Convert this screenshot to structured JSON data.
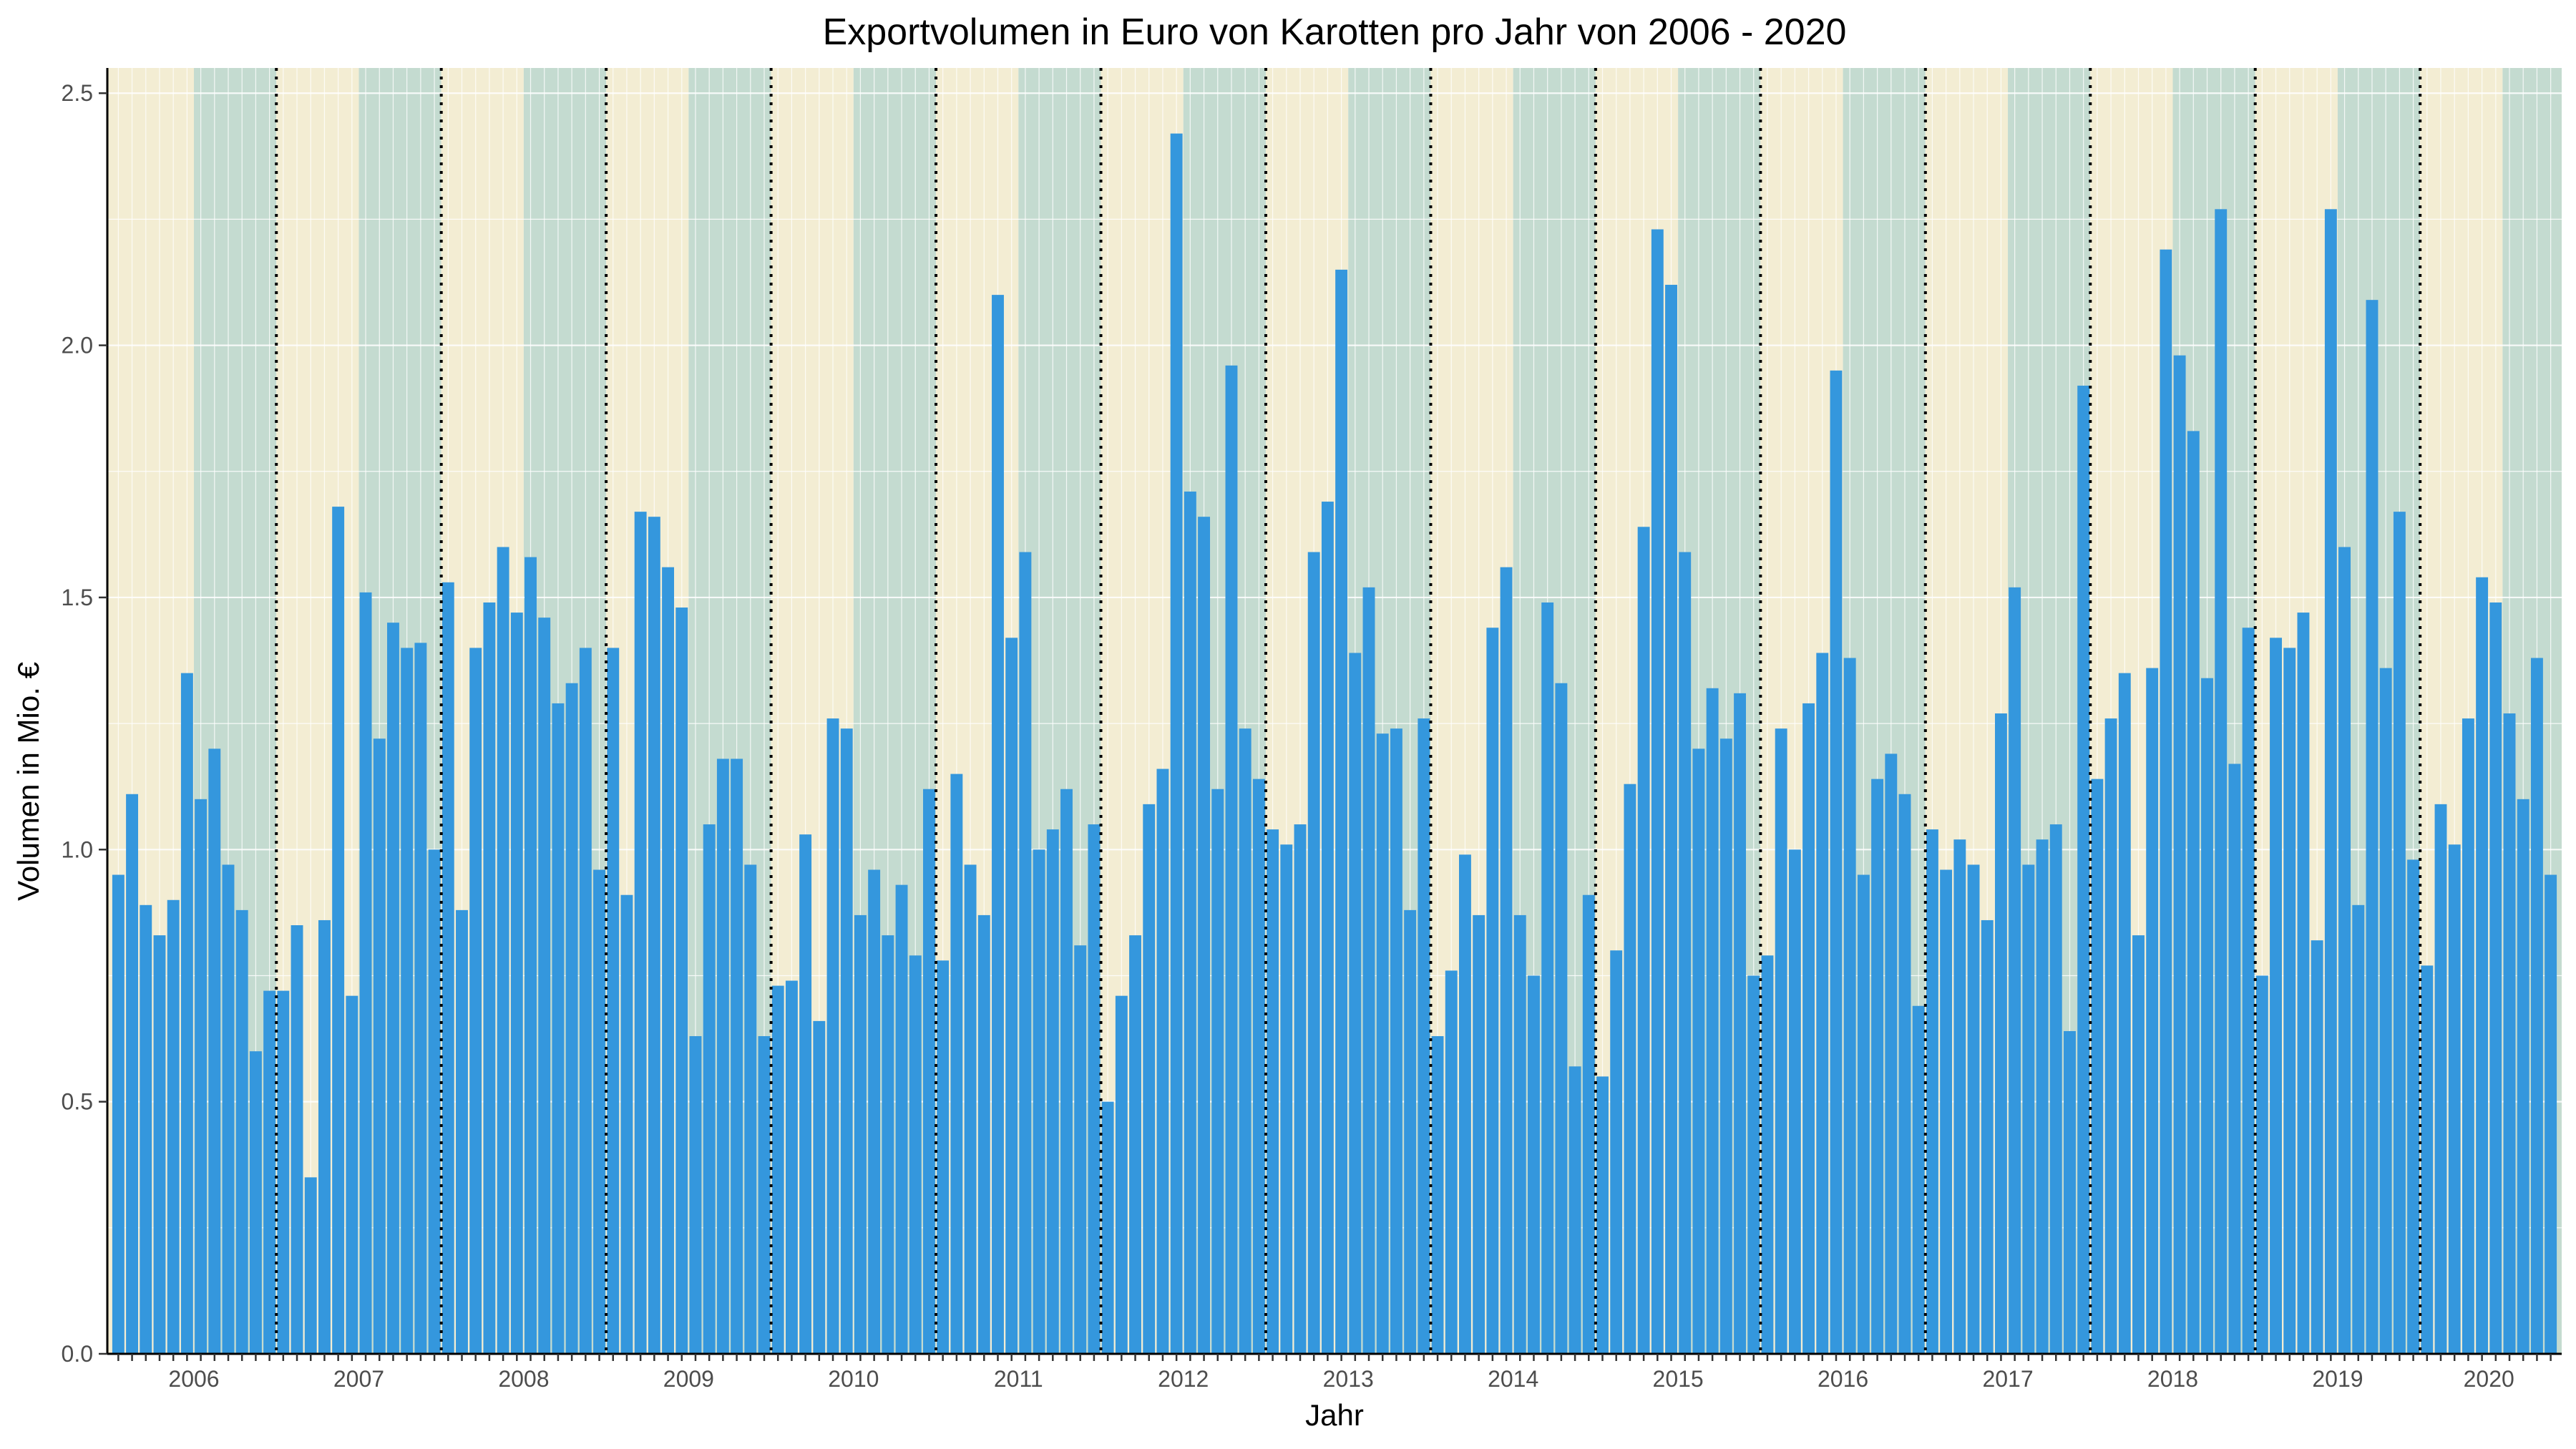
{
  "chart_data": {
    "type": "bar",
    "title": "Exportvolumen in Euro von Karotten pro Jahr von 2006 - 2020",
    "xlabel": "Jahr",
    "ylabel": "Volumen in Mio. €",
    "ylim": [
      0,
      2.55
    ],
    "y_ticks": [
      "0.0",
      "0.5",
      "1.0",
      "1.5",
      "2.0",
      "2.5"
    ],
    "x_tick_labels": [
      "2006",
      "2007",
      "2008",
      "2009",
      "2010",
      "2011",
      "2012",
      "2013",
      "2014",
      "2015",
      "2016",
      "2017",
      "2018",
      "2019",
      "2020"
    ],
    "bar_color": "#3497dd",
    "background_bands": {
      "first_half_color": "#f3edd3",
      "second_half_color": "#c4dbd0"
    },
    "year_separator": "dotted vertical line between years",
    "grid": true,
    "legend": "none",
    "series": [
      {
        "year": "2006",
        "values": [
          0.95,
          1.11,
          0.89,
          0.83,
          0.9,
          1.35,
          1.1,
          1.2,
          0.97,
          0.88,
          0.6,
          0.72
        ]
      },
      {
        "year": "2007",
        "values": [
          0.72,
          0.85,
          0.35,
          0.86,
          1.68,
          0.71,
          1.51,
          1.22,
          1.45,
          1.4,
          1.41,
          1.0
        ]
      },
      {
        "year": "2008",
        "values": [
          1.53,
          0.88,
          1.4,
          1.49,
          1.6,
          1.47,
          1.58,
          1.46,
          1.29,
          1.33,
          1.4,
          0.96
        ]
      },
      {
        "year": "2009",
        "values": [
          1.4,
          0.91,
          1.67,
          1.66,
          1.56,
          1.48,
          0.63,
          1.05,
          1.18,
          1.18,
          0.97,
          0.63
        ]
      },
      {
        "year": "2010",
        "values": [
          0.73,
          0.74,
          1.03,
          0.66,
          1.26,
          1.24,
          0.87,
          0.96,
          0.83,
          0.93,
          0.79,
          1.12
        ]
      },
      {
        "year": "2011",
        "values": [
          0.78,
          1.15,
          0.97,
          0.87,
          2.1,
          1.42,
          1.59,
          1.0,
          1.04,
          1.12,
          0.81,
          1.05
        ]
      },
      {
        "year": "2012",
        "values": [
          0.5,
          0.71,
          0.83,
          1.09,
          1.16,
          2.42,
          1.71,
          1.66,
          1.12,
          1.96,
          1.24,
          1.14
        ]
      },
      {
        "year": "2013",
        "values": [
          1.04,
          1.01,
          1.05,
          1.59,
          1.69,
          2.15,
          1.39,
          1.52,
          1.23,
          1.24,
          0.88,
          1.26
        ]
      },
      {
        "year": "2014",
        "values": [
          0.63,
          0.76,
          0.99,
          0.87,
          1.44,
          1.56,
          0.87,
          0.75,
          1.49,
          1.33,
          0.57,
          0.91
        ]
      },
      {
        "year": "2015",
        "values": [
          0.55,
          0.8,
          1.13,
          1.64,
          2.23,
          2.12,
          1.59,
          1.2,
          1.32,
          1.22,
          1.31,
          0.75
        ]
      },
      {
        "year": "2016",
        "values": [
          0.79,
          1.24,
          1.0,
          1.29,
          1.39,
          1.95,
          1.38,
          0.95,
          1.14,
          1.19,
          1.11,
          0.69
        ]
      },
      {
        "year": "2017",
        "values": [
          1.04,
          0.96,
          1.02,
          0.97,
          0.86,
          1.27,
          1.52,
          0.97,
          1.02,
          1.05,
          0.64,
          1.92
        ]
      },
      {
        "year": "2018",
        "values": [
          1.14,
          1.26,
          1.35,
          0.83,
          1.36,
          2.19,
          1.98,
          1.83,
          1.34,
          2.27,
          1.17,
          1.44
        ]
      },
      {
        "year": "2019",
        "values": [
          0.75,
          1.42,
          1.4,
          1.47,
          0.82,
          2.27,
          1.6,
          0.89,
          2.09,
          1.36,
          1.67,
          0.98
        ]
      },
      {
        "year": "2020",
        "values": [
          0.77,
          1.09,
          1.01,
          1.26,
          1.54,
          1.49,
          1.27,
          1.1,
          1.38,
          0.95
        ]
      }
    ]
  }
}
